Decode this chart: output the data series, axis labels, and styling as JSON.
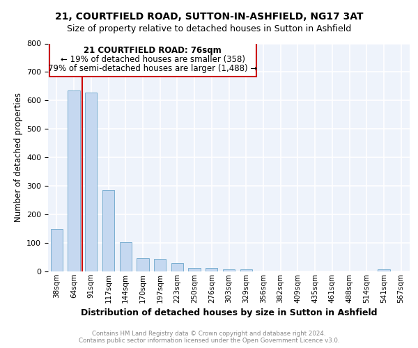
{
  "title1": "21, COURTFIELD ROAD, SUTTON-IN-ASHFIELD, NG17 3AT",
  "title2": "Size of property relative to detached houses in Sutton in Ashfield",
  "xlabel": "Distribution of detached houses by size in Sutton in Ashfield",
  "ylabel": "Number of detached properties",
  "footer1": "Contains HM Land Registry data © Crown copyright and database right 2024.",
  "footer2": "Contains public sector information licensed under the Open Government Licence v3.0.",
  "categories": [
    "38sqm",
    "64sqm",
    "91sqm",
    "117sqm",
    "144sqm",
    "170sqm",
    "197sqm",
    "223sqm",
    "250sqm",
    "276sqm",
    "303sqm",
    "329sqm",
    "356sqm",
    "382sqm",
    "409sqm",
    "435sqm",
    "461sqm",
    "488sqm",
    "514sqm",
    "541sqm",
    "567sqm"
  ],
  "values": [
    150,
    635,
    628,
    285,
    103,
    46,
    43,
    30,
    13,
    13,
    8,
    8,
    0,
    0,
    0,
    0,
    0,
    0,
    0,
    8,
    0
  ],
  "bar_color": "#c5d8f0",
  "bar_edge_color": "#7aaed0",
  "annotation_box_color": "#ffffff",
  "annotation_box_edge": "#cc0000",
  "vline_color": "#cc0000",
  "vline_x": 1.5,
  "annotation_text_line1": "21 COURTFIELD ROAD: 76sqm",
  "annotation_text_line2": "← 19% of detached houses are smaller (358)",
  "annotation_text_line3": "79% of semi-detached houses are larger (1,488) →",
  "ylim": [
    0,
    800
  ],
  "yticks": [
    0,
    100,
    200,
    300,
    400,
    500,
    600,
    700,
    800
  ],
  "background_color": "#eef3fb",
  "grid_color": "#ffffff",
  "title_fontsize": 10,
  "subtitle_fontsize": 9
}
